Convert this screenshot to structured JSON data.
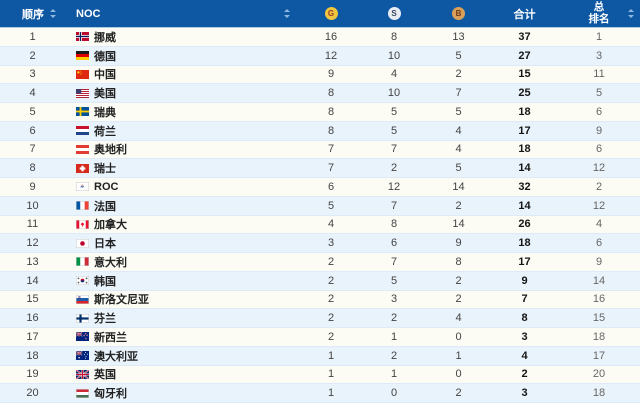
{
  "header": {
    "columns": {
      "order": "顺序",
      "noc": "NOC",
      "gold": "G",
      "silver": "S",
      "bronze": "B",
      "total": "合计",
      "overall_rank_line1": "总",
      "overall_rank_line2": "排名"
    },
    "sortable_columns": [
      "order",
      "noc",
      "overall_rank"
    ],
    "icons": {
      "sort": "up-down-triangles",
      "gold": "gold-medal-circle",
      "silver": "silver-medal-circle",
      "bronze": "bronze-medal-circle"
    }
  },
  "colors": {
    "header_bg": "#0D57A3",
    "row_odd_bg": "#FCFCF5",
    "row_even_bg": "#E9F3FB",
    "gold_badge_bg": "#EFC63E",
    "silver_badge_bg": "#E9EDF3",
    "bronze_badge_bg": "#D99F58"
  },
  "rows": [
    {
      "order": 1,
      "noc": "挪威",
      "flag": "no",
      "gold": 16,
      "silver": 8,
      "bronze": 13,
      "total": 37,
      "rank": 1
    },
    {
      "order": 2,
      "noc": "德国",
      "flag": "de",
      "gold": 12,
      "silver": 10,
      "bronze": 5,
      "total": 27,
      "rank": 3
    },
    {
      "order": 3,
      "noc": "中国",
      "flag": "cn",
      "gold": 9,
      "silver": 4,
      "bronze": 2,
      "total": 15,
      "rank": 11
    },
    {
      "order": 4,
      "noc": "美国",
      "flag": "us",
      "gold": 8,
      "silver": 10,
      "bronze": 7,
      "total": 25,
      "rank": 5
    },
    {
      "order": 5,
      "noc": "瑞典",
      "flag": "se",
      "gold": 8,
      "silver": 5,
      "bronze": 5,
      "total": 18,
      "rank": 6
    },
    {
      "order": 6,
      "noc": "荷兰",
      "flag": "nl",
      "gold": 8,
      "silver": 5,
      "bronze": 4,
      "total": 17,
      "rank": 9
    },
    {
      "order": 7,
      "noc": "奥地利",
      "flag": "at",
      "gold": 7,
      "silver": 7,
      "bronze": 4,
      "total": 18,
      "rank": 6
    },
    {
      "order": 8,
      "noc": "瑞士",
      "flag": "ch",
      "gold": 7,
      "silver": 2,
      "bronze": 5,
      "total": 14,
      "rank": 12
    },
    {
      "order": 9,
      "noc": "ROC",
      "flag": "roc",
      "gold": 6,
      "silver": 12,
      "bronze": 14,
      "total": 32,
      "rank": 2
    },
    {
      "order": 10,
      "noc": "法国",
      "flag": "fr",
      "gold": 5,
      "silver": 7,
      "bronze": 2,
      "total": 14,
      "rank": 12
    },
    {
      "order": 11,
      "noc": "加拿大",
      "flag": "ca",
      "gold": 4,
      "silver": 8,
      "bronze": 14,
      "total": 26,
      "rank": 4
    },
    {
      "order": 12,
      "noc": "日本",
      "flag": "jp",
      "gold": 3,
      "silver": 6,
      "bronze": 9,
      "total": 18,
      "rank": 6
    },
    {
      "order": 13,
      "noc": "意大利",
      "flag": "it",
      "gold": 2,
      "silver": 7,
      "bronze": 8,
      "total": 17,
      "rank": 9
    },
    {
      "order": 14,
      "noc": "韩国",
      "flag": "kr",
      "gold": 2,
      "silver": 5,
      "bronze": 2,
      "total": 9,
      "rank": 14
    },
    {
      "order": 15,
      "noc": "斯洛文尼亚",
      "flag": "si",
      "gold": 2,
      "silver": 3,
      "bronze": 2,
      "total": 7,
      "rank": 16
    },
    {
      "order": 16,
      "noc": "芬兰",
      "flag": "fi",
      "gold": 2,
      "silver": 2,
      "bronze": 4,
      "total": 8,
      "rank": 15
    },
    {
      "order": 17,
      "noc": "新西兰",
      "flag": "nz",
      "gold": 2,
      "silver": 1,
      "bronze": 0,
      "total": 3,
      "rank": 18
    },
    {
      "order": 18,
      "noc": "澳大利亚",
      "flag": "au",
      "gold": 1,
      "silver": 2,
      "bronze": 1,
      "total": 4,
      "rank": 17
    },
    {
      "order": 19,
      "noc": "英国",
      "flag": "gb",
      "gold": 1,
      "silver": 1,
      "bronze": 0,
      "total": 2,
      "rank": 20
    },
    {
      "order": 20,
      "noc": "匈牙利",
      "flag": "hu",
      "gold": 1,
      "silver": 0,
      "bronze": 2,
      "total": 3,
      "rank": 18
    }
  ]
}
